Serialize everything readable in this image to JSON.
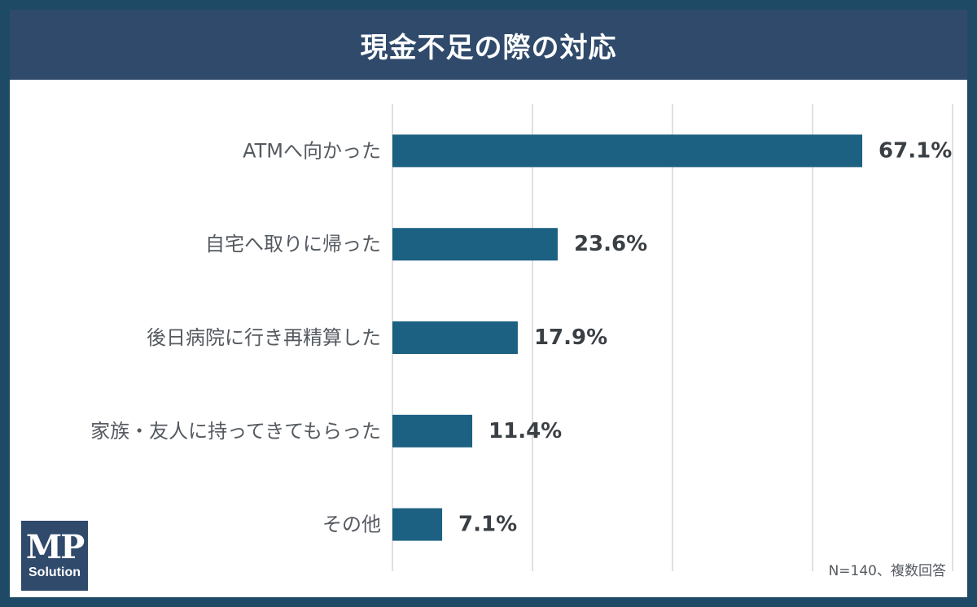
{
  "header": {
    "title": "現金不足の際の対応"
  },
  "footer": {
    "note": "N=140、複数回答"
  },
  "logo": {
    "main": "MP",
    "sub": "Solution"
  },
  "colors": {
    "bar": "#1c6082",
    "header": "#2f4a6b",
    "grid": "#d6d6d6"
  },
  "chart_data": {
    "type": "bar",
    "orientation": "horizontal",
    "title": "現金不足の際の対応",
    "categories": [
      "ATMへ向かった",
      "自宅へ取りに帰った",
      "後日病院に行き再精算した",
      "家族・友人に持ってきてもらった",
      "その他"
    ],
    "values": [
      67.1,
      23.6,
      17.9,
      11.4,
      7.1
    ],
    "value_labels": [
      "67.1%",
      "23.6%",
      "17.9%",
      "11.4%",
      "7.1%"
    ],
    "xlim": [
      0,
      80
    ],
    "grid": true,
    "note": "N=140、複数回答"
  }
}
